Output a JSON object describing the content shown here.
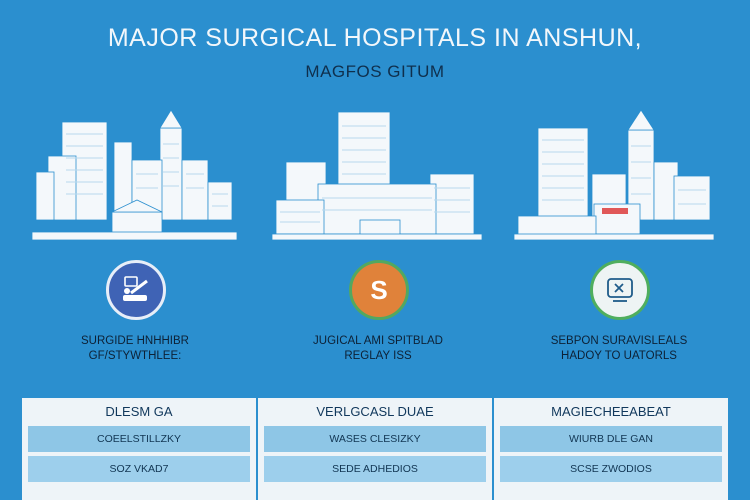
{
  "header": {
    "title": "MAJOR SURGICAL HOSPITALS IN ANSHUN,",
    "subtitle": "MAGFOS GITUM"
  },
  "illustrations": [
    {
      "icon": "city-skyline-left-icon"
    },
    {
      "icon": "hospital-building-center-icon"
    },
    {
      "icon": "hospital-skyline-right-icon"
    }
  ],
  "features": [
    {
      "icon": "surgery-tools-icon",
      "color": "#3f63b5",
      "caption_line1": "SURGIDE HNHHIBR",
      "caption_line2": "GF/STYWTHLEE:"
    },
    {
      "icon": "operation-symbol-icon",
      "color": "#e0823a",
      "caption_line1": "JUGICAL AMI SPITBLAD",
      "caption_line2": "REGLAY ISS"
    },
    {
      "icon": "medical-screen-icon",
      "color": "#4fae5e",
      "caption_line1": "SEBPON SURAVISLEALS",
      "caption_line2": "HADOY TO UATORLS"
    }
  ],
  "table": {
    "columns": [
      {
        "header": "DLESM GA",
        "rows": [
          "COEELSTILLZKY",
          "SOZ VKAD7"
        ]
      },
      {
        "header": "VERLGCASL DUAE",
        "rows": [
          "WASES CLESIZKY",
          "SEDE ADHEDIOS"
        ]
      },
      {
        "header": "MAGIECHEEABEAT",
        "rows": [
          "WIURB DLE GAN",
          "SCSE ZWODIOS"
        ]
      }
    ]
  }
}
